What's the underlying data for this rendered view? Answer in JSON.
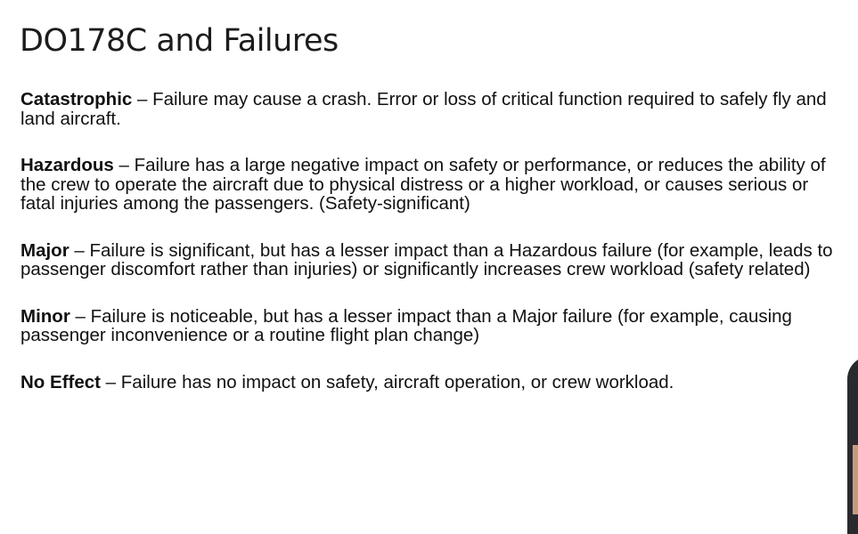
{
  "slide": {
    "title": "DO178C and Failures",
    "separator": " – ",
    "definitions": [
      {
        "term": "Catastrophic",
        "description": "Failure may cause a crash. Error or loss of critical function required to safely fly and land aircraft."
      },
      {
        "term": "Hazardous",
        "description": "Failure has a large negative impact on safety or performance, or reduces the ability of the crew to operate the aircraft due to physical distress or a higher workload, or causes serious or fatal injuries among the passengers. (Safety-significant)"
      },
      {
        "term": "Major",
        "description": "Failure is significant, but has a lesser impact than a Hazardous failure (for example, leads to passenger discomfort rather than injuries) or significantly increases crew workload (safety related)"
      },
      {
        "term": "Minor",
        "description": "Failure is noticeable, but has a lesser impact than a Major failure (for example, causing passenger inconvenience or a routine flight plan change)"
      },
      {
        "term": "No Effect",
        "description": "Failure has no impact on safety, aircraft operation, or crew workload."
      }
    ]
  }
}
